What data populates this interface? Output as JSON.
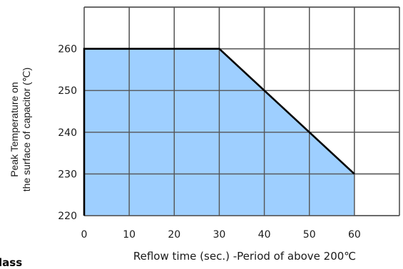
{
  "chart_data": {
    "type": "area",
    "xlabel": "Reflow time (sec.) -Period of above 200℃",
    "ylabel_lines": [
      "Peak Temperature on",
      "the surface of capacitor  (℃)"
    ],
    "x_ticks": [
      0,
      10,
      20,
      30,
      40,
      50,
      60
    ],
    "y_ticks": [
      220,
      230,
      240,
      250,
      260
    ],
    "xlim": [
      0,
      70
    ],
    "ylim": [
      220,
      270
    ],
    "grid": true,
    "fill_color": "#99ccff",
    "grid_color": "#555555",
    "line_color": "#000000",
    "series": [
      {
        "x": [
          0,
          0,
          30,
          40,
          50,
          60,
          60
        ],
        "y": [
          220,
          260,
          260,
          250,
          240,
          230,
          220
        ]
      }
    ]
  },
  "stray_text": "lass"
}
